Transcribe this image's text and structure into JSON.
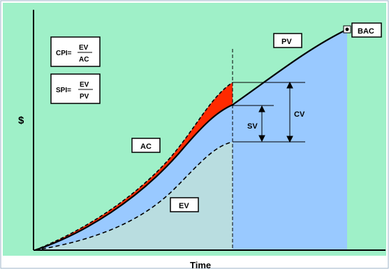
{
  "axes": {
    "y_label": "$",
    "x_label": "Time"
  },
  "formulas": {
    "cpi": {
      "lhs": "CPI=",
      "num": "EV",
      "den": "AC"
    },
    "spi": {
      "lhs": "SPI=",
      "num": "EV",
      "den": "PV"
    }
  },
  "curve_labels": {
    "pv": "PV",
    "ac": "AC",
    "ev": "EV",
    "bac": "BAC"
  },
  "variance_labels": {
    "sv": "SV",
    "cv": "CV"
  },
  "colors": {
    "background": "#9ff0c8",
    "planned_region": "#99c9ff",
    "earned_region": "#b9dde0",
    "cost_overrun": "#ff2a00",
    "curve": "#000000"
  }
}
